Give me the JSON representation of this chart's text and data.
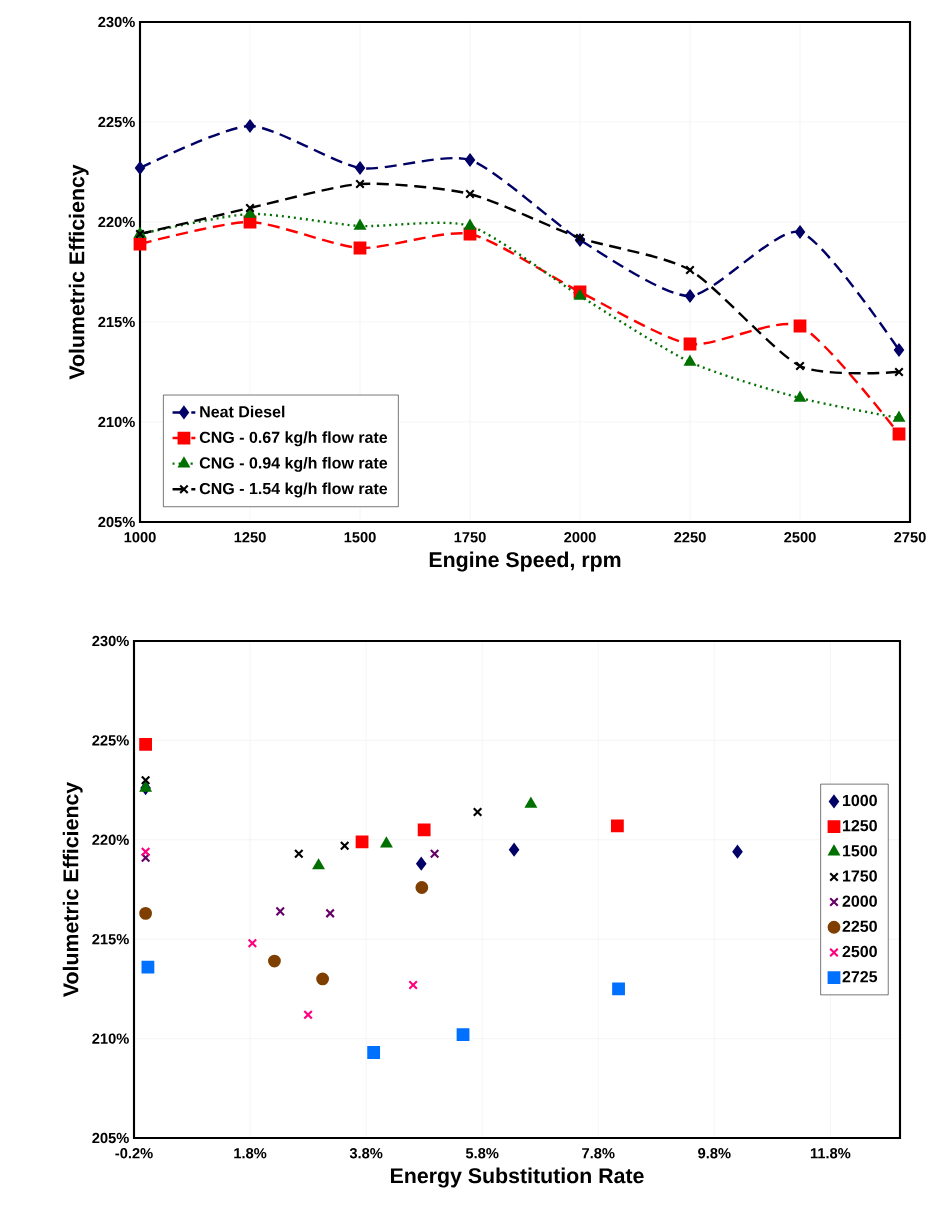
{
  "chart_data": [
    {
      "type": "line",
      "xlabel": "Engine Speed, rpm",
      "ylabel": "Volumetric Efficiency",
      "xlim": [
        1000,
        2750
      ],
      "ylim": [
        205,
        230
      ],
      "xticks": [
        1000,
        1250,
        1500,
        1750,
        2000,
        2250,
        2500,
        2750
      ],
      "yticks": [
        {
          "value": 205,
          "label": "205%"
        },
        {
          "value": 210,
          "label": "210%"
        },
        {
          "value": 215,
          "label": "215%"
        },
        {
          "value": 220,
          "label": "220%"
        },
        {
          "value": 225,
          "label": "225%"
        },
        {
          "value": 230,
          "label": "230%"
        }
      ],
      "x": [
        1000,
        1250,
        1500,
        1750,
        2000,
        2250,
        2500,
        2725
      ],
      "grid": true,
      "legend": "bottom left",
      "series": [
        {
          "name": "Neat Diesel",
          "color": "#000066",
          "marker": "diamond",
          "line_style": "dashed",
          "values": [
            222.7,
            224.8,
            222.7,
            223.1,
            219.1,
            216.3,
            219.5,
            213.6
          ]
        },
        {
          "name": "CNG - 0.67 kg/h flow rate",
          "color": "#ff0000",
          "marker": "square",
          "line_style": "dashed",
          "values": [
            218.9,
            220.0,
            218.7,
            219.4,
            216.5,
            213.9,
            214.8,
            209.4
          ]
        },
        {
          "name": "CNG - 0.94 kg/h flow rate",
          "color": "#007000",
          "marker": "triangle",
          "line_style": "dotted",
          "values": [
            219.4,
            220.4,
            219.8,
            219.8,
            216.3,
            213.0,
            211.2,
            210.2
          ]
        },
        {
          "name": "CNG - 1.54 kg/h flow rate",
          "color": "#000000",
          "marker": "cross",
          "line_style": "dashed",
          "values": [
            219.4,
            220.7,
            221.9,
            221.4,
            219.2,
            217.6,
            212.8,
            212.5
          ]
        }
      ]
    },
    {
      "type": "scatter",
      "xlabel": "Energy Substitution Rate",
      "ylabel": "Volumetric Efficiency",
      "xlim": [
        -0.2,
        13.0
      ],
      "ylim": [
        205,
        230
      ],
      "xticks": [
        {
          "value": -0.2,
          "label": "-0.2%"
        },
        {
          "value": 1.8,
          "label": "1.8%"
        },
        {
          "value": 3.8,
          "label": "3.8%"
        },
        {
          "value": 5.8,
          "label": "5.8%"
        },
        {
          "value": 7.8,
          "label": "7.8%"
        },
        {
          "value": 9.8,
          "label": "9.8%"
        },
        {
          "value": 11.8,
          "label": "11.8%"
        }
      ],
      "yticks": [
        {
          "value": 205,
          "label": "205%"
        },
        {
          "value": 210,
          "label": "210%"
        },
        {
          "value": 215,
          "label": "215%"
        },
        {
          "value": 220,
          "label": "220%"
        },
        {
          "value": 225,
          "label": "225%"
        },
        {
          "value": 230,
          "label": "230%"
        }
      ],
      "grid": true,
      "legend": "right",
      "series": [
        {
          "name": "1000",
          "color": "#000066",
          "marker": "diamond",
          "x": [
            0.0,
            4.75,
            6.35,
            10.2
          ],
          "values": [
            222.6,
            218.8,
            219.5,
            219.4
          ]
        },
        {
          "name": "1250",
          "color": "#ff0000",
          "marker": "square",
          "x": [
            0.0,
            3.73,
            4.8,
            8.13
          ],
          "values": [
            224.8,
            219.9,
            220.5,
            220.7
          ]
        },
        {
          "name": "1500",
          "color": "#007000",
          "marker": "triangle",
          "x": [
            0.0,
            2.98,
            4.15,
            6.64
          ],
          "values": [
            222.6,
            218.7,
            219.8,
            221.8
          ]
        },
        {
          "name": "1750",
          "color": "#000000",
          "marker": "cross",
          "x": [
            0.0,
            2.64,
            3.43,
            5.72
          ],
          "values": [
            223.0,
            219.3,
            219.7,
            221.4
          ]
        },
        {
          "name": "2000",
          "color": "#660066",
          "marker": "cross",
          "x": [
            0.0,
            2.32,
            3.18,
            4.98
          ],
          "values": [
            219.1,
            216.4,
            216.3,
            219.3
          ]
        },
        {
          "name": "2250",
          "color": "#7f3f00",
          "marker": "circle",
          "x": [
            0.0,
            2.22,
            3.05,
            4.76
          ],
          "values": [
            216.3,
            213.9,
            213.0,
            217.6
          ]
        },
        {
          "name": "2500",
          "color": "#ff0080",
          "marker": "cross",
          "x": [
            0.0,
            1.84,
            2.8,
            4.61
          ],
          "values": [
            219.4,
            214.8,
            211.2,
            212.7
          ]
        },
        {
          "name": "2725",
          "color": "#0070ff",
          "marker": "square",
          "x": [
            0.04,
            3.93,
            5.47,
            8.15
          ],
          "values": [
            213.6,
            209.3,
            210.2,
            212.5
          ]
        }
      ]
    }
  ]
}
